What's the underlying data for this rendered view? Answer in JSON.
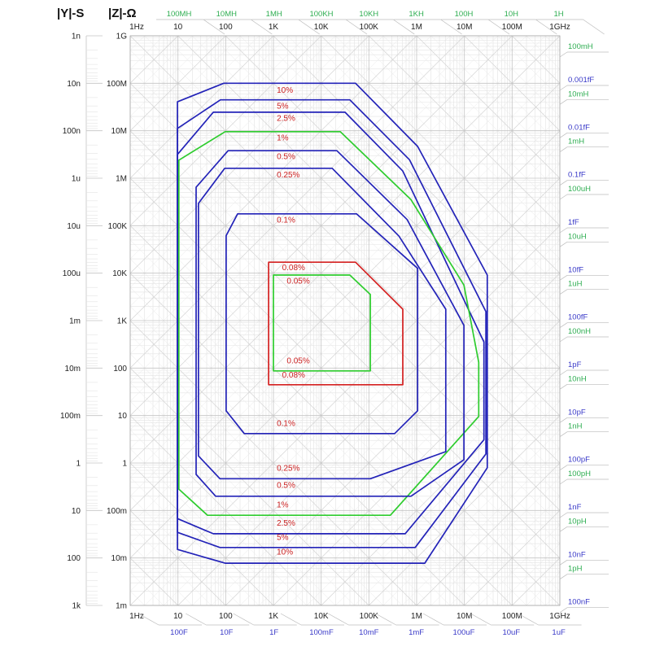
{
  "header": {
    "left_title": "|Y|-S",
    "right_title": "|Z|-Ω"
  },
  "colors": {
    "contour_blue": "#2323b8",
    "contour_green": "#2ecc2e",
    "contour_red": "#d42020",
    "label_red": "#cc2222",
    "axis_text": "#222222",
    "l_label_green": "#2fae52",
    "c_label_blue": "#3a3ac8",
    "grid_major": "#c4c4c4",
    "grid_minor": "#e3e3e3",
    "diag_major": "#d4d4d4",
    "diag_minor": "#e8e8e8",
    "callout": "#bbbbbb",
    "border": "#aaaaaa"
  },
  "chart_data": {
    "type": "contour",
    "title": "Impedance measurement accuracy chart: |Z| vs frequency with accuracy contours",
    "x_axis": {
      "unit": "Hz",
      "scale": "log",
      "range_log10": [
        0,
        9
      ]
    },
    "z_axis": {
      "unit": "Ω",
      "scale": "log",
      "range_log10": [
        -3,
        9
      ]
    },
    "freq_ticks": [
      "1Hz",
      "10",
      "100",
      "1K",
      "10K",
      "100K",
      "1M",
      "10M",
      "100M",
      "1GHz"
    ],
    "z_ticks": [
      "1G",
      "100M",
      "10M",
      "1M",
      "100K",
      "10K",
      "1K",
      "100",
      "10",
      "1",
      "100m",
      "10m",
      "1m"
    ],
    "ys_ticks": [
      "1n",
      "10n",
      "100n",
      "1u",
      "10u",
      "100u",
      "1m",
      "10m",
      "100m",
      "1",
      "10",
      "100",
      "1k"
    ],
    "top_l_labels": [
      "100MH",
      "10MH",
      "1MH",
      "100KH",
      "10KH",
      "1KH",
      "100H",
      "10H",
      "1H"
    ],
    "bottom_c_labels": [
      "100F",
      "10F",
      "1F",
      "100mF",
      "10mF",
      "1mF",
      "100uF",
      "10uF",
      "1uF"
    ],
    "right_l_labels": [
      "100mH",
      "10mH",
      "1mH",
      "100uH",
      "10uH",
      "1uH",
      "100nH",
      "10nH",
      "1nH",
      "100pH",
      "10pH",
      "1pH"
    ],
    "right_c_labels": [
      "0.001fF",
      "0.01fF",
      "0.1fF",
      "1fF",
      "10fF",
      "100fF",
      "1pF",
      "10pF",
      "100pF",
      "1nF",
      "10nF",
      "100nF"
    ],
    "contours": [
      {
        "label": "10%",
        "color": "blue",
        "points": [
          [
            1.96,
            8.0
          ],
          [
            4.72,
            8.0
          ],
          [
            6.02,
            6.67
          ],
          [
            7.48,
            3.96
          ],
          [
            7.48,
            -0.1
          ],
          [
            6.17,
            -2.11
          ],
          [
            1.99,
            -2.11
          ],
          [
            0.99,
            -1.82
          ],
          [
            0.99,
            7.61
          ]
        ],
        "labels": [
          [
            3.07,
            7.8
          ],
          [
            3.07,
            -1.93
          ]
        ]
      },
      {
        "label": "5%",
        "color": "blue",
        "points": [
          [
            1.89,
            7.65
          ],
          [
            4.6,
            7.65
          ],
          [
            5.85,
            6.39
          ],
          [
            7.45,
            3.19
          ],
          [
            7.45,
            0.19
          ],
          [
            5.97,
            -1.78
          ],
          [
            1.88,
            -1.78
          ],
          [
            0.99,
            -1.46
          ],
          [
            0.99,
            7.05
          ]
        ],
        "labels": [
          [
            3.07,
            7.47
          ],
          [
            3.07,
            -1.62
          ]
        ]
      },
      {
        "label": "2.5%",
        "color": "blue",
        "points": [
          [
            1.74,
            7.39
          ],
          [
            4.5,
            7.39
          ],
          [
            5.71,
            6.15
          ],
          [
            7.41,
            2.55
          ],
          [
            7.41,
            0.49
          ],
          [
            5.76,
            -1.49
          ],
          [
            1.74,
            -1.49
          ],
          [
            0.99,
            -1.17
          ],
          [
            0.99,
            6.5
          ]
        ],
        "labels": [
          [
            3.07,
            7.21
          ],
          [
            3.07,
            -1.32
          ]
        ]
      },
      {
        "label": "1%",
        "color": "green",
        "points": [
          [
            1.99,
            6.98
          ],
          [
            4.4,
            6.98
          ],
          [
            5.88,
            5.55
          ],
          [
            6.99,
            3.75
          ],
          [
            7.3,
            2.12
          ],
          [
            7.3,
            0.98
          ],
          [
            5.45,
            -1.1
          ],
          [
            1.62,
            -1.1
          ],
          [
            1.02,
            -0.55
          ],
          [
            1.02,
            6.38
          ]
        ],
        "labels": [
          [
            3.07,
            6.8
          ],
          [
            3.07,
            -0.93
          ]
        ]
      },
      {
        "label": "0.5%",
        "color": "blue",
        "points": [
          [
            2.05,
            6.58
          ],
          [
            4.33,
            6.58
          ],
          [
            5.8,
            5.13
          ],
          [
            6.99,
            2.9
          ],
          [
            6.99,
            0.07
          ],
          [
            5.88,
            -0.7
          ],
          [
            1.79,
            -0.7
          ],
          [
            1.38,
            -0.24
          ],
          [
            1.38,
            5.81
          ]
        ],
        "labels": [
          [
            3.07,
            6.4
          ],
          [
            3.07,
            -0.52
          ]
        ]
      },
      {
        "label": "0.25%",
        "color": "blue",
        "points": [
          [
            1.98,
            6.21
          ],
          [
            4.23,
            6.21
          ],
          [
            5.63,
            4.78
          ],
          [
            6.61,
            3.24
          ],
          [
            6.61,
            0.24
          ],
          [
            5.03,
            -0.33
          ],
          [
            1.88,
            -0.33
          ],
          [
            1.43,
            0.15
          ],
          [
            1.43,
            5.47
          ]
        ],
        "labels": [
          [
            3.07,
            6.02
          ],
          [
            3.07,
            -0.16
          ]
        ]
      },
      {
        "label": "0.1%",
        "color": "blue",
        "points": [
          [
            2.25,
            5.25
          ],
          [
            4.74,
            5.25
          ],
          [
            6.02,
            4.1
          ],
          [
            6.02,
            1.1
          ],
          [
            5.54,
            0.62
          ],
          [
            2.39,
            0.62
          ],
          [
            2.01,
            1.1
          ],
          [
            2.01,
            4.79
          ]
        ],
        "labels": [
          [
            3.07,
            5.07
          ],
          [
            3.07,
            0.78
          ]
        ]
      },
      {
        "label": "0.08%",
        "color": "red",
        "points": [
          [
            2.9,
            4.23
          ],
          [
            4.72,
            4.23
          ],
          [
            5.71,
            3.24
          ],
          [
            5.71,
            1.65
          ],
          [
            2.9,
            1.65
          ]
        ],
        "labels": [
          [
            3.18,
            4.06
          ],
          [
            3.18,
            1.8
          ]
        ]
      },
      {
        "label": "0.05%",
        "color": "green",
        "points": [
          [
            3.0,
            3.96
          ],
          [
            4.6,
            3.96
          ],
          [
            5.03,
            3.55
          ],
          [
            5.03,
            1.94
          ],
          [
            3.0,
            1.94
          ]
        ],
        "labels": [
          [
            3.28,
            3.78
          ],
          [
            3.28,
            2.1
          ]
        ]
      }
    ]
  }
}
